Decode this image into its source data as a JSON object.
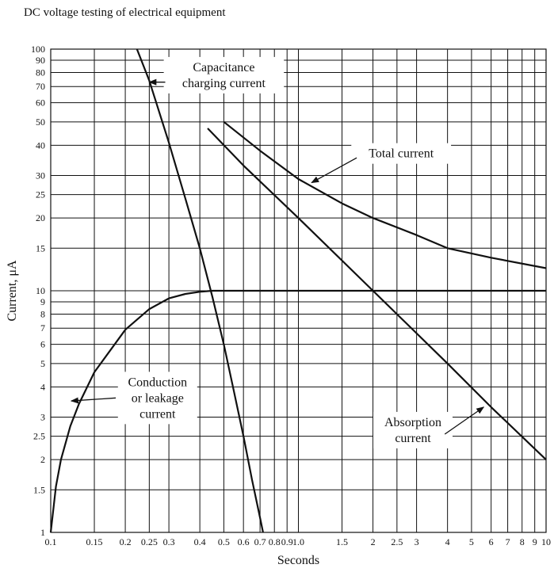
{
  "page_header": "DC voltage testing of electrical equipment",
  "chart_data": {
    "type": "line",
    "title": "",
    "xlabel": "Seconds",
    "ylabel": "Current, μA",
    "xscale": "log",
    "yscale": "log",
    "xlim": [
      0.1,
      10
    ],
    "ylim": [
      1,
      100
    ],
    "grid": true,
    "x_ticks": [
      {
        "v": 0.1,
        "label": "0.1"
      },
      {
        "v": 0.15,
        "label": "0.15"
      },
      {
        "v": 0.2,
        "label": "0.2"
      },
      {
        "v": 0.25,
        "label": "0.25"
      },
      {
        "v": 0.3,
        "label": "0.3"
      },
      {
        "v": 0.4,
        "label": "0.4"
      },
      {
        "v": 0.5,
        "label": "0.5"
      },
      {
        "v": 0.6,
        "label": "0.6"
      },
      {
        "v": 0.7,
        "label": "0.7"
      },
      {
        "v": 0.8,
        "label": "0.8"
      },
      {
        "v": 0.9,
        "label": "0.9"
      },
      {
        "v": 1.0,
        "label": "1.0"
      },
      {
        "v": 1.5,
        "label": "1.5"
      },
      {
        "v": 2,
        "label": "2"
      },
      {
        "v": 2.5,
        "label": "2.5"
      },
      {
        "v": 3,
        "label": "3"
      },
      {
        "v": 4,
        "label": "4"
      },
      {
        "v": 5,
        "label": "5"
      },
      {
        "v": 6,
        "label": "6"
      },
      {
        "v": 7,
        "label": "7"
      },
      {
        "v": 8,
        "label": "8"
      },
      {
        "v": 9,
        "label": "9"
      },
      {
        "v": 10,
        "label": "10"
      }
    ],
    "y_ticks": [
      {
        "v": 1,
        "label": "1"
      },
      {
        "v": 1.5,
        "label": "1.5"
      },
      {
        "v": 2,
        "label": "2"
      },
      {
        "v": 2.5,
        "label": "2.5"
      },
      {
        "v": 3,
        "label": "3"
      },
      {
        "v": 4,
        "label": "4"
      },
      {
        "v": 5,
        "label": "5"
      },
      {
        "v": 6,
        "label": "6"
      },
      {
        "v": 7,
        "label": "7"
      },
      {
        "v": 8,
        "label": "8"
      },
      {
        "v": 9,
        "label": "9"
      },
      {
        "v": 10,
        "label": "10"
      },
      {
        "v": 15,
        "label": "15"
      },
      {
        "v": 20,
        "label": "20"
      },
      {
        "v": 25,
        "label": "25"
      },
      {
        "v": 30,
        "label": "30"
      },
      {
        "v": 40,
        "label": "40"
      },
      {
        "v": 50,
        "label": "50"
      },
      {
        "v": 60,
        "label": "60"
      },
      {
        "v": 70,
        "label": "70"
      },
      {
        "v": 80,
        "label": "80"
      },
      {
        "v": 90,
        "label": "90"
      },
      {
        "v": 100,
        "label": "100"
      }
    ],
    "series": [
      {
        "key": "capacitance",
        "x": [
          0.223,
          0.25,
          0.3,
          0.35,
          0.4,
          0.45,
          0.5,
          0.55,
          0.6,
          0.65,
          0.7,
          0.72
        ],
        "y": [
          100,
          74,
          41,
          24,
          15,
          9.4,
          6.0,
          3.8,
          2.5,
          1.65,
          1.15,
          1.0
        ]
      },
      {
        "key": "absorption",
        "x": [
          0.43,
          0.6,
          1.0,
          2.0,
          4.0,
          6.0,
          10.0
        ],
        "y": [
          47,
          33,
          20,
          10,
          5,
          3.3,
          2
        ]
      },
      {
        "key": "total",
        "x": [
          0.5,
          0.7,
          1.0,
          1.5,
          2.0,
          3.0,
          4.0,
          6.0,
          10.0
        ],
        "y": [
          50,
          38,
          29,
          23,
          20,
          17,
          15,
          13.7,
          12.4
        ]
      },
      {
        "key": "conduction",
        "x": [
          0.1,
          0.105,
          0.11,
          0.12,
          0.13,
          0.15,
          0.2,
          0.25,
          0.3,
          0.35,
          0.4,
          0.45,
          0.5,
          0.7,
          1.0,
          2.0,
          5.0,
          10.0
        ],
        "y": [
          1,
          1.55,
          2.0,
          2.75,
          3.4,
          4.6,
          6.9,
          8.4,
          9.3,
          9.7,
          9.9,
          10,
          10,
          10,
          10,
          10,
          10,
          10
        ]
      }
    ],
    "annotations": [
      {
        "key": "capacitance",
        "lines": [
          "Capacitance",
          "charging current"
        ],
        "text_x": 0.5,
        "text_y": 78,
        "arrow_from": [
          0.29,
          73
        ],
        "arrow_to": [
          0.25,
          73
        ]
      },
      {
        "key": "total",
        "lines": [
          "Total current"
        ],
        "text_x": 2.6,
        "text_y": 37,
        "arrow_from": [
          1.72,
          35.5
        ],
        "arrow_to": [
          1.13,
          28
        ]
      },
      {
        "key": "conduction",
        "lines": [
          "Conduction",
          "or leakage",
          "current"
        ],
        "text_x": 0.27,
        "text_y": 3.6,
        "arrow_from": [
          0.183,
          3.6
        ],
        "arrow_to": [
          0.121,
          3.5
        ]
      },
      {
        "key": "absorption",
        "lines": [
          "Absorption",
          "current"
        ],
        "text_x": 2.9,
        "text_y": 2.65,
        "arrow_from": [
          3.9,
          2.55
        ],
        "arrow_to": [
          5.6,
          3.3
        ]
      }
    ]
  }
}
